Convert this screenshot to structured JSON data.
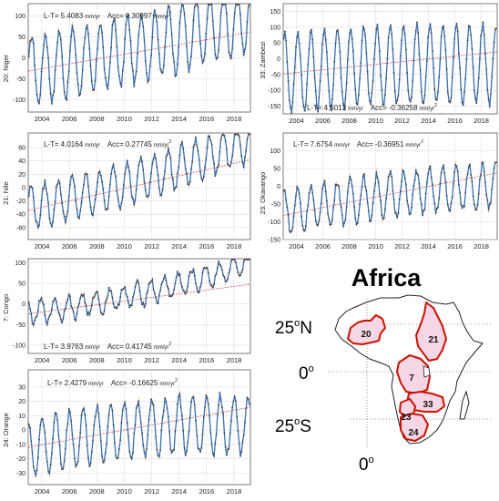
{
  "chart_data": [
    {
      "type": "line",
      "panel_label": "20: Niger",
      "annotation": {
        "lt_prefix": "L-T=",
        "lt_value": "5.4083",
        "lt_unit": "mm/yr",
        "acc_prefix": "Acc=",
        "acc_value": "0.30997",
        "acc_unit": "mm/yr",
        "acc_exp": "2"
      },
      "annotation_position": "top",
      "x_ticks": [
        "2004",
        "2006",
        "2008",
        "2010",
        "2012",
        "2014",
        "2016",
        "2018"
      ],
      "y_ticks": [
        -100,
        -50,
        0,
        50,
        100
      ],
      "xlim": [
        2003,
        2019.2
      ],
      "ylim": [
        -130,
        130
      ],
      "model": {
        "amplitude": 82,
        "offset": -30,
        "trend_per_year": 5.4,
        "acceleration": 0.31,
        "base_year": 2003.0,
        "phase": 0.0,
        "noise": 10
      },
      "trend_line": {
        "start": -32,
        "end": 62
      },
      "grid": true
    },
    {
      "type": "line",
      "panel_label": "33: Zambezi",
      "annotation": {
        "lt_prefix": "L-T=",
        "lt_value": "4.5013",
        "lt_unit": "mm/yr",
        "acc_prefix": "Acc=",
        "acc_value": "-0.36258",
        "acc_unit": "mm/yr",
        "acc_exp": "2"
      },
      "annotation_position": "bottom",
      "x_ticks": [
        "2004",
        "2006",
        "2008",
        "2010",
        "2012",
        "2014",
        "2016",
        "2018"
      ],
      "y_ticks": [
        -150,
        -100,
        -50,
        0,
        50,
        100,
        150
      ],
      "xlim": [
        2003,
        2019.2
      ],
      "ylim": [
        -175,
        175
      ],
      "model": {
        "amplitude": 125,
        "offset": -45,
        "trend_per_year": 4.5,
        "acceleration": -0.36,
        "base_year": 2003.0,
        "phase": 0.9,
        "noise": 12
      },
      "trend_line": {
        "start": -48,
        "end": 22
      },
      "grid": true
    },
    {
      "type": "line",
      "panel_label": "21: Nile",
      "annotation": {
        "lt_prefix": "L-T=",
        "lt_value": "4.0164",
        "lt_unit": "mm/yr",
        "acc_prefix": "Acc=",
        "acc_value": "0.27745",
        "acc_unit": "mm/yr",
        "acc_exp": "2"
      },
      "annotation_position": "top",
      "x_ticks": [
        "2004",
        "2006",
        "2008",
        "2010",
        "2012",
        "2014",
        "2016",
        "2018"
      ],
      "y_ticks": [
        -60,
        -40,
        -20,
        0,
        20,
        40,
        60
      ],
      "xlim": [
        2003,
        2019.2
      ],
      "ylim": [
        -78,
        82
      ],
      "model": {
        "amplitude": 32,
        "offset": -30,
        "trend_per_year": 4.0,
        "acceleration": 0.28,
        "base_year": 2003.0,
        "phase": 0.3,
        "noise": 5
      },
      "trend_line": {
        "start": -34,
        "end": 42
      },
      "grid": true
    },
    {
      "type": "line",
      "panel_label": "23: Okavango",
      "annotation": {
        "lt_prefix": "L-T=",
        "lt_value": "7.6754",
        "lt_unit": "mm/yr",
        "acc_prefix": "Acc=",
        "acc_value": "-0.36951",
        "acc_unit": "mm/yr",
        "acc_exp": "2"
      },
      "annotation_position": "top",
      "x_ticks": [
        "2004",
        "2006",
        "2008",
        "2010",
        "2012",
        "2014",
        "2016",
        "2018"
      ],
      "y_ticks": [
        -150,
        -100,
        -50,
        0,
        50,
        100
      ],
      "xlim": [
        2003,
        2019.2
      ],
      "ylim": [
        -150,
        150
      ],
      "model": {
        "amplitude": 62,
        "offset": -75,
        "trend_per_year": 7.7,
        "acceleration": -0.37,
        "base_year": 2003.0,
        "phase": 1.0,
        "noise": 10
      },
      "trend_line": {
        "start": -82,
        "end": 38
      },
      "grid": true
    },
    {
      "type": "line",
      "panel_label": "7: Congo",
      "annotation": {
        "lt_prefix": "L-T=",
        "lt_value": "3.9763",
        "lt_unit": "mm/yr",
        "acc_prefix": "Acc=",
        "acc_value": "0.41745",
        "acc_unit": "mm/yr",
        "acc_exp": "2"
      },
      "annotation_position": "bottom",
      "x_ticks": [
        "2004",
        "2006",
        "2008",
        "2010",
        "2012",
        "2014",
        "2016",
        "2018"
      ],
      "y_ticks": [
        -100,
        -50,
        0,
        50,
        100
      ],
      "xlim": [
        2003,
        2019.2
      ],
      "ylim": [
        -120,
        110
      ],
      "model": {
        "amplitude": 28,
        "offset": -22,
        "trend_per_year": 4.0,
        "acceleration": 0.42,
        "base_year": 2003.0,
        "phase": 2.0,
        "noise": 8
      },
      "trend_line": {
        "start": -24,
        "end": 48
      },
      "grid": true
    },
    {
      "type": "line",
      "panel_label": "24: Orange",
      "annotation": {
        "lt_prefix": "L-T=",
        "lt_value": "2.4279",
        "lt_unit": "mm/yr",
        "acc_prefix": "Acc=",
        "acc_value": "-0.16625",
        "acc_unit": "mm/yr",
        "acc_exp": "2"
      },
      "annotation_position": "top",
      "x_ticks": [
        "2004",
        "2006",
        "2008",
        "2010",
        "2012",
        "2014",
        "2016",
        "2018"
      ],
      "y_ticks": [
        -30,
        -20,
        -10,
        0,
        10,
        20,
        30
      ],
      "xlim": [
        2003,
        2019.2
      ],
      "ylim": [
        -38,
        42
      ],
      "model": {
        "amplitude": 20,
        "offset": -13,
        "trend_per_year": 2.4,
        "acceleration": -0.17,
        "base_year": 2003.0,
        "phase": 1.5,
        "noise": 3
      },
      "trend_line": {
        "start": -12,
        "end": 16
      },
      "grid": true
    }
  ],
  "map": {
    "title": "Africa",
    "lat_labels": [
      {
        "deg": "25",
        "sup": "o",
        "hem": "N"
      },
      {
        "deg": "0",
        "sup": "o",
        "hem": ""
      },
      {
        "deg": "25",
        "sup": "o",
        "hem": "S"
      }
    ],
    "lon_label": {
      "deg": "0",
      "sup": "o"
    },
    "basins": [
      "20",
      "21",
      "7",
      "33",
      "23",
      "24"
    ]
  },
  "colors": {
    "series_line": "#3a6fb0",
    "series_marker": "#404040",
    "error_bar": "#e8a060",
    "trend_line": "#e05050",
    "grid": "#d8d8d8",
    "basin_outline": "#cc1100",
    "basin_fill": "#f4d6e4"
  }
}
